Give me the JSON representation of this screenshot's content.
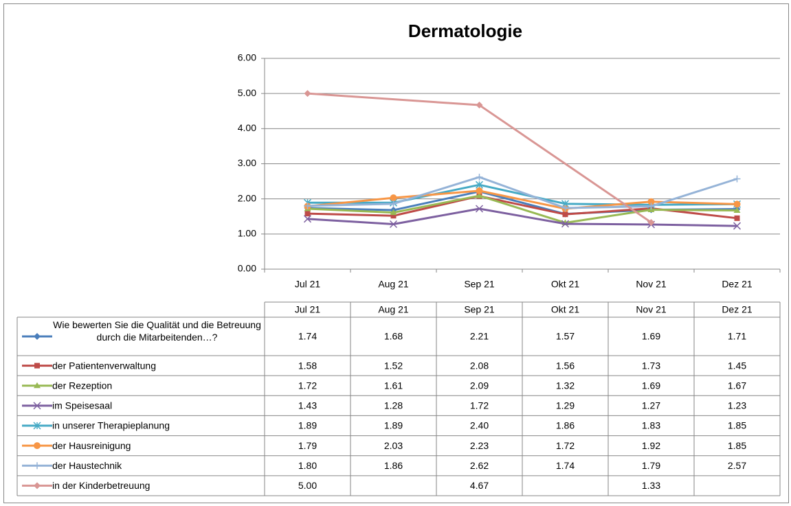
{
  "chart_data": {
    "type": "line",
    "title": "Dermatologie",
    "categories": [
      "Jul 21",
      "Aug 21",
      "Sep 21",
      "Okt 21",
      "Nov 21",
      "Dez 21"
    ],
    "ylim": [
      0,
      6
    ],
    "yticks": [
      {
        "value": 0,
        "label": "0.00"
      },
      {
        "value": 1,
        "label": "1.00"
      },
      {
        "value": 2,
        "label": "2.00"
      },
      {
        "value": 3,
        "label": "3.00"
      },
      {
        "value": 4,
        "label": "4.00"
      },
      {
        "value": 5,
        "label": "5.00"
      },
      {
        "value": 6,
        "label": "6.00"
      }
    ],
    "grid": true,
    "connect_gaps": true,
    "data_table": true,
    "series": [
      {
        "name": "Wie bewerten Sie die Qualität und die Betreuung durch die Mitarbeitenden…?",
        "color": "#4a7ebb",
        "marker": "diamond",
        "values": [
          1.74,
          1.68,
          2.21,
          1.57,
          1.69,
          1.71
        ],
        "value_labels": [
          "1.74",
          "1.68",
          "2.21",
          "1.57",
          "1.69",
          "1.71"
        ]
      },
      {
        "name": "der Patientenverwaltung",
        "color": "#be4b48",
        "marker": "square",
        "values": [
          1.58,
          1.52,
          2.08,
          1.56,
          1.73,
          1.45
        ],
        "value_labels": [
          "1.58",
          "1.52",
          "2.08",
          "1.56",
          "1.73",
          "1.45"
        ]
      },
      {
        "name": "der Rezeption",
        "color": "#98b954",
        "marker": "triangle",
        "values": [
          1.72,
          1.61,
          2.09,
          1.32,
          1.69,
          1.67
        ],
        "value_labels": [
          "1.72",
          "1.61",
          "2.09",
          "1.32",
          "1.69",
          "1.67"
        ]
      },
      {
        "name": "im Speisesaal",
        "color": "#7d60a0",
        "marker": "x",
        "values": [
          1.43,
          1.28,
          1.72,
          1.29,
          1.27,
          1.23
        ],
        "value_labels": [
          "1.43",
          "1.28",
          "1.72",
          "1.29",
          "1.27",
          "1.23"
        ]
      },
      {
        "name": "in unserer Therapieplanung",
        "color": "#46aac5",
        "marker": "star",
        "values": [
          1.89,
          1.89,
          2.4,
          1.86,
          1.83,
          1.85
        ],
        "value_labels": [
          "1.89",
          "1.89",
          "2.40",
          "1.86",
          "1.83",
          "1.85"
        ]
      },
      {
        "name": "der Hausreinigung",
        "color": "#f79646",
        "marker": "circle",
        "values": [
          1.79,
          2.03,
          2.23,
          1.72,
          1.92,
          1.85
        ],
        "value_labels": [
          "1.79",
          "2.03",
          "2.23",
          "1.72",
          "1.92",
          "1.85"
        ]
      },
      {
        "name": "der Haustechnik",
        "color": "#95b3d7",
        "marker": "plus",
        "values": [
          1.8,
          1.86,
          2.62,
          1.74,
          1.79,
          2.57
        ],
        "value_labels": [
          "1.80",
          "1.86",
          "2.62",
          "1.74",
          "1.79",
          "2.57"
        ]
      },
      {
        "name": "in der Kinderbetreuung",
        "color": "#d99694",
        "marker": "diamond",
        "values": [
          5,
          null,
          4.67,
          null,
          1.33,
          null
        ],
        "value_labels": [
          "5.00",
          null,
          "4.67",
          null,
          "1.33",
          null
        ]
      }
    ]
  }
}
